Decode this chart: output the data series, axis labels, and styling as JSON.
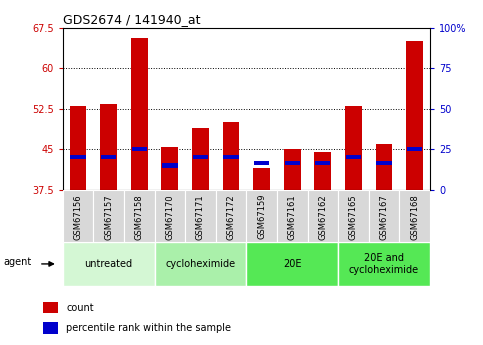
{
  "title": "GDS2674 / 141940_at",
  "samples": [
    "GSM67156",
    "GSM67157",
    "GSM67158",
    "GSM67170",
    "GSM67171",
    "GSM67172",
    "GSM67159",
    "GSM67161",
    "GSM67162",
    "GSM67165",
    "GSM67167",
    "GSM67168"
  ],
  "count_values": [
    53.0,
    53.3,
    65.5,
    45.5,
    49.0,
    50.0,
    41.5,
    45.0,
    44.5,
    53.0,
    46.0,
    65.0
  ],
  "percentile_values": [
    43.5,
    43.5,
    45.0,
    42.0,
    43.5,
    43.5,
    42.5,
    42.5,
    42.5,
    43.5,
    42.5,
    45.0
  ],
  "base_value": 37.5,
  "ylim_left": [
    37.5,
    67.5
  ],
  "ylim_right": [
    0,
    100
  ],
  "yticks_left": [
    37.5,
    45.0,
    52.5,
    60.0,
    67.5
  ],
  "yticks_right": [
    0,
    25,
    50,
    75,
    100
  ],
  "ytick_labels_left": [
    "37.5",
    "45",
    "52.5",
    "60",
    "67.5"
  ],
  "ytick_labels_right": [
    "0",
    "25",
    "50",
    "75",
    "100%"
  ],
  "bar_color": "#cc0000",
  "percentile_color": "#0000cc",
  "groups": [
    {
      "label": "untreated",
      "start": 0,
      "end": 3,
      "color": "#d4f7d4"
    },
    {
      "label": "cycloheximide",
      "start": 3,
      "end": 6,
      "color": "#aaf0aa"
    },
    {
      "label": "20E",
      "start": 6,
      "end": 9,
      "color": "#55e855"
    },
    {
      "label": "20E and\ncycloheximide",
      "start": 9,
      "end": 12,
      "color": "#55e855"
    }
  ],
  "bar_width": 0.55,
  "percentile_bar_width": 0.5,
  "percentile_bar_height": 0.8,
  "grid_color": "black",
  "left_tick_color": "#cc0000",
  "right_tick_color": "#0000cc",
  "legend_count_label": "count",
  "legend_pct_label": "percentile rank within the sample",
  "agent_label": "agent",
  "sample_box_color": "#d8d8d8",
  "title_fontsize": 9,
  "tick_fontsize": 7,
  "sample_fontsize": 6,
  "group_fontsize": 7,
  "legend_fontsize": 7
}
